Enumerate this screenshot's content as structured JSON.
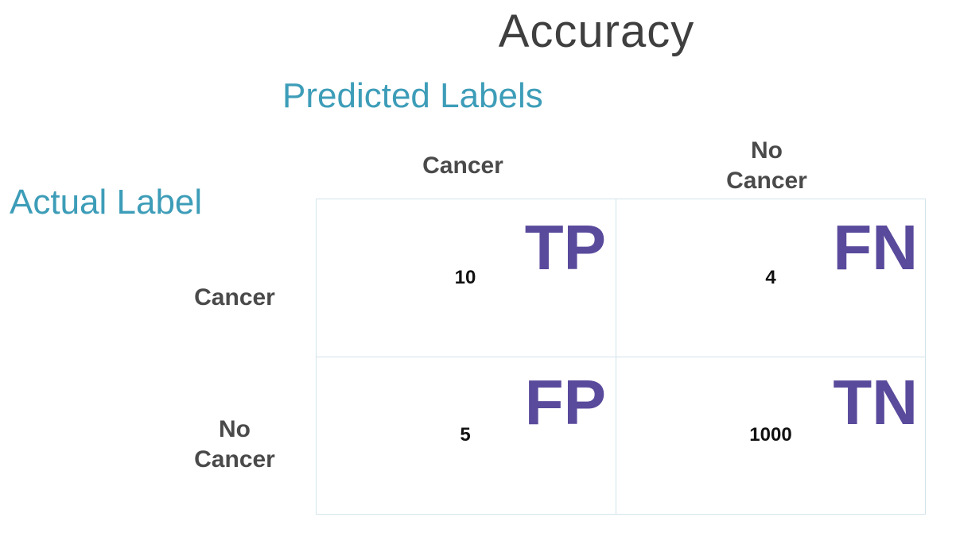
{
  "title": "Accuracy",
  "axis_labels": {
    "predicted": "Predicted Labels",
    "actual": "Actual Label"
  },
  "columns": {
    "cancer": "Cancer",
    "no_cancer_line1": "No",
    "no_cancer_line2": "Cancer"
  },
  "rows": {
    "cancer": "Cancer",
    "no_cancer_line1": "No",
    "no_cancer_line2": "Cancer"
  },
  "cells": {
    "tp": {
      "value": "10",
      "tag": "TP"
    },
    "fn": {
      "value": "4",
      "tag": "FN"
    },
    "fp": {
      "value": "5",
      "tag": "FP"
    },
    "tn": {
      "value": "1000",
      "tag": "TN"
    }
  },
  "colors": {
    "axis_label": "#3d9db8",
    "tag": "#5a4a9c",
    "grid": "#d3e4ea"
  }
}
